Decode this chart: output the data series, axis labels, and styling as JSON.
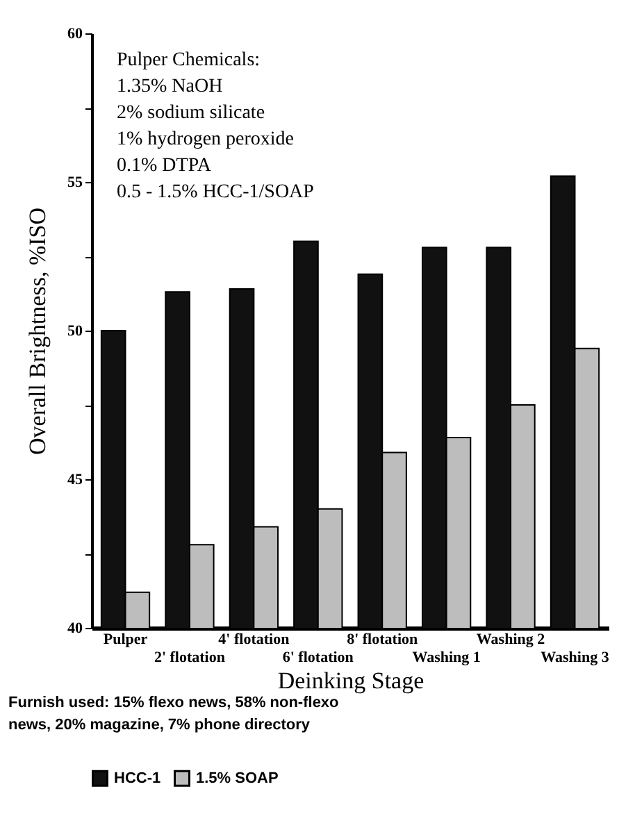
{
  "chart_data": {
    "type": "bar",
    "xlabel": "Deinking Stage",
    "ylabel": "Overall Brightness, %ISO",
    "categories": [
      "Pulper",
      "2' flotation",
      "4' flotation",
      "6' flotation",
      "8' flotation",
      "Washing 1",
      "Washing 2",
      "Washing 3"
    ],
    "series": [
      {
        "name": "HCC-1",
        "color": "#111111",
        "values": [
          50.0,
          51.3,
          51.4,
          53.0,
          51.9,
          52.8,
          52.8,
          55.2
        ]
      },
      {
        "name": "1.5% SOAP",
        "color": "#bdbdbd",
        "values": [
          41.2,
          42.8,
          43.4,
          44.0,
          45.9,
          46.4,
          47.5,
          49.4
        ]
      }
    ],
    "ylim": [
      40,
      60
    ],
    "yticks": [
      40,
      {
        "value": 42.5,
        "label": null
      },
      45,
      {
        "value": 47.5,
        "label": null
      },
      50,
      {
        "value": 52.5,
        "label": null
      },
      55,
      {
        "value": 57.5,
        "label": null
      },
      60
    ],
    "legend": "bottom",
    "grid": false,
    "annotations": [
      "Pulper Chemicals:\n            1.35% NaOH\n            2% sodium silicate\n            1% hydrogen peroxide\n            0.1% DTPA\n            0.5 - 1.5% HCC-1/SOAP",
      "Furnish used: 15% flexo news, 58% non-flexo news, 20% magazine, 7% phone directory"
    ]
  }
}
